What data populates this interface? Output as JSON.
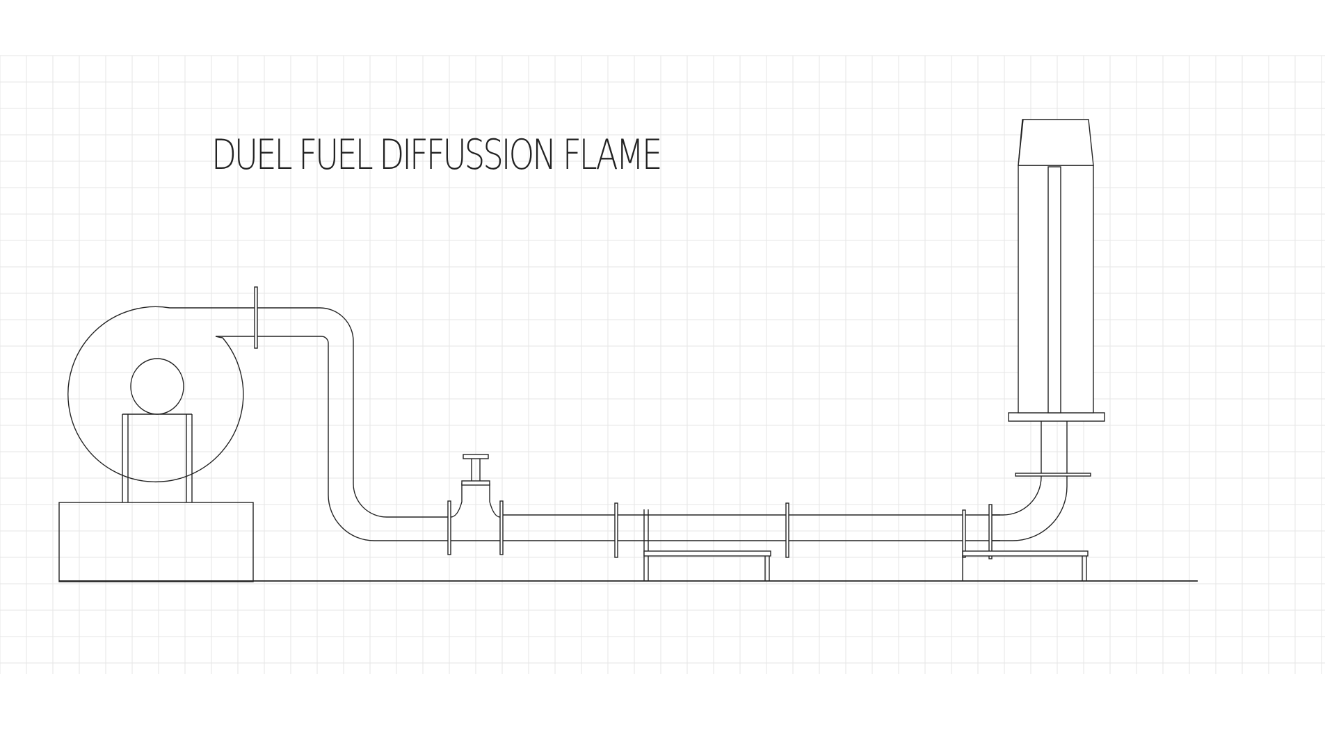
{
  "title": "DUEL FUEL DIFFUSSION FLAME",
  "colors": {
    "line": "#222222",
    "grid": "#e6e6e6",
    "background": "#ffffff"
  },
  "components": [
    "blower",
    "blower-stand",
    "duct-flange",
    "elbow-duct",
    "valve",
    "pipe-flanges",
    "pipe-supports",
    "riser-elbow",
    "burner-stack",
    "ground-line"
  ]
}
